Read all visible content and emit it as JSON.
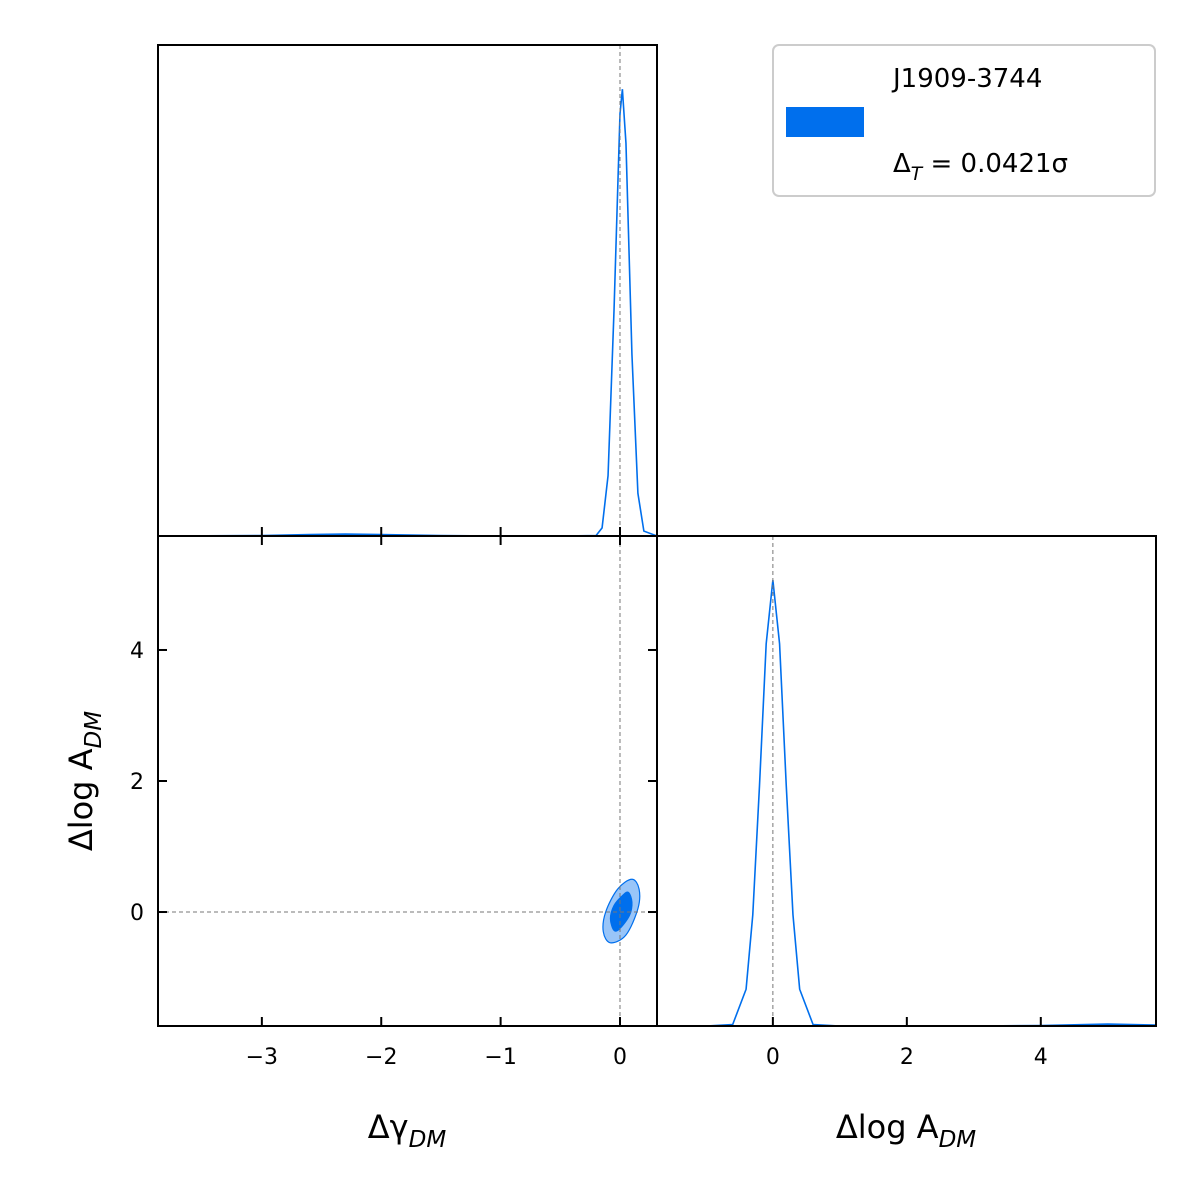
{
  "chart_data": [
    {
      "type": "line",
      "x": [
        -3.87,
        -3,
        -2.6,
        -2.3,
        -2,
        -1.5,
        -1,
        -0.5,
        -0.2,
        -0.15,
        -0.1,
        -0.05,
        0,
        0.02,
        0.05,
        0.1,
        0.15,
        0.2,
        0.31
      ],
      "values": [
        0,
        0.001,
        0.003,
        0.004,
        0.003,
        0.001,
        0,
        0,
        0.001,
        0.0165,
        0.123,
        0.46,
        0.86,
        0.91,
        0.8,
        0.37,
        0.087,
        0.01,
        0
      ],
      "color": "#006fed",
      "xlim": [
        -3.87,
        0.31
      ],
      "ylim": [
        0,
        1
      ],
      "xticks": [
        -3,
        -2,
        -1,
        0
      ],
      "truth_x": 0
    },
    {
      "type": "contour",
      "contours": [
        {
          "x": [
            0.1,
            0.16,
            0.15,
            0.05,
            -0.08,
            -0.14,
            -0.12,
            -0.02
          ],
          "y": [
            0.5,
            0.35,
            0.05,
            -0.35,
            -0.47,
            -0.3,
            0.0,
            0.35
          ],
          "color": "#006fed",
          "alpha": 0.4
        },
        {
          "x": [
            0.07,
            0.1,
            0.08,
            0.0,
            -0.05,
            -0.08,
            -0.05,
            0.02
          ],
          "y": [
            0.3,
            0.15,
            -0.05,
            -0.25,
            -0.28,
            -0.1,
            0.1,
            0.25
          ],
          "color": "#006fed",
          "alpha": 1
        }
      ],
      "xlim": [
        -3.87,
        0.31
      ],
      "ylim": [
        -1.74,
        5.74
      ],
      "xticks": [
        {
          "value": -3,
          "label": "−3"
        },
        {
          "value": -2,
          "label": "−2"
        },
        {
          "value": -1,
          "label": "−1"
        },
        0
      ],
      "yticks": [
        0,
        2,
        4
      ],
      "xlabel": {
        "text": "Δγ",
        "subscript": "DM"
      },
      "ylabel": {
        "text": "Δlog A",
        "subscript": "DM"
      },
      "truth_x": 0,
      "truth_y": 0
    },
    {
      "type": "line",
      "x": [
        -1.73,
        -1,
        -0.6,
        -0.4,
        -0.3,
        -0.2,
        -0.1,
        0,
        0.1,
        0.2,
        0.3,
        0.4,
        0.6,
        1,
        3,
        4,
        5,
        5.72
      ],
      "values": [
        0,
        0,
        0.003,
        0.075,
        0.227,
        0.49,
        0.78,
        0.91,
        0.78,
        0.49,
        0.227,
        0.075,
        0.003,
        0,
        0,
        0.001,
        0.004,
        0.002
      ],
      "color": "#006fed",
      "xlim": [
        -1.73,
        5.72
      ],
      "ylim": [
        0,
        1
      ],
      "xticks": [
        0,
        2,
        4
      ],
      "xlabel": {
        "text": "Δlog A",
        "subscript": "DM"
      },
      "truth_x": 0
    }
  ],
  "legend": {
    "name": "J1909-3744",
    "color": "#006fed",
    "note": {
      "text": "Δ",
      "subscript": "T",
      "rest": " = 0.0421σ"
    }
  }
}
